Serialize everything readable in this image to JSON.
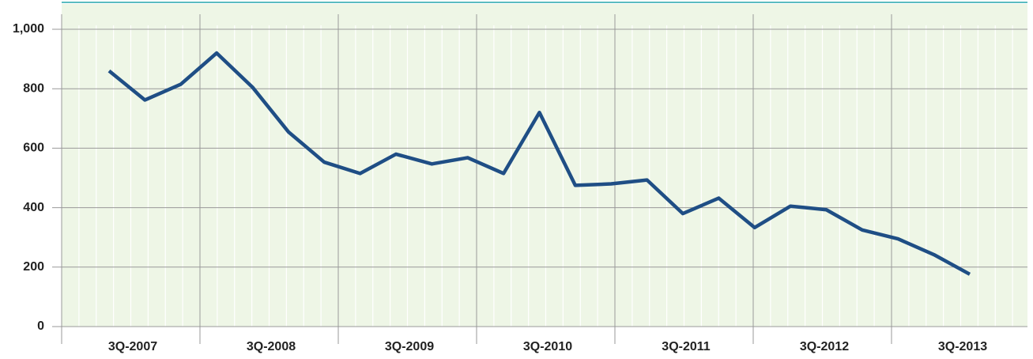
{
  "chart_data": {
    "type": "line",
    "categories": [
      null,
      null,
      null,
      null,
      null,
      null,
      null,
      null,
      null,
      null,
      null,
      null,
      null,
      null,
      null,
      null,
      null,
      null,
      null,
      null,
      null,
      null,
      null,
      null,
      null
    ],
    "x_axis_labels": [
      "3Q-2007",
      "3Q-2008",
      "3Q-2009",
      "3Q-2010",
      "3Q-2011",
      "3Q-2012",
      "3Q-2013"
    ],
    "series": [
      {
        "name": null,
        "color": "#1f4e85",
        "values": [
          860,
          762,
          815,
          920,
          805,
          655,
          553,
          515,
          580,
          547,
          568,
          515,
          720,
          475,
          480,
          493,
          380,
          432,
          333,
          405,
          393,
          325,
          295,
          242,
          176
        ]
      }
    ],
    "ylim": [
      0,
      1000
    ],
    "yticks": [
      0,
      200,
      400,
      600,
      800,
      {
        "value": 1000,
        "label": "1,000"
      }
    ],
    "grid": true
  }
}
